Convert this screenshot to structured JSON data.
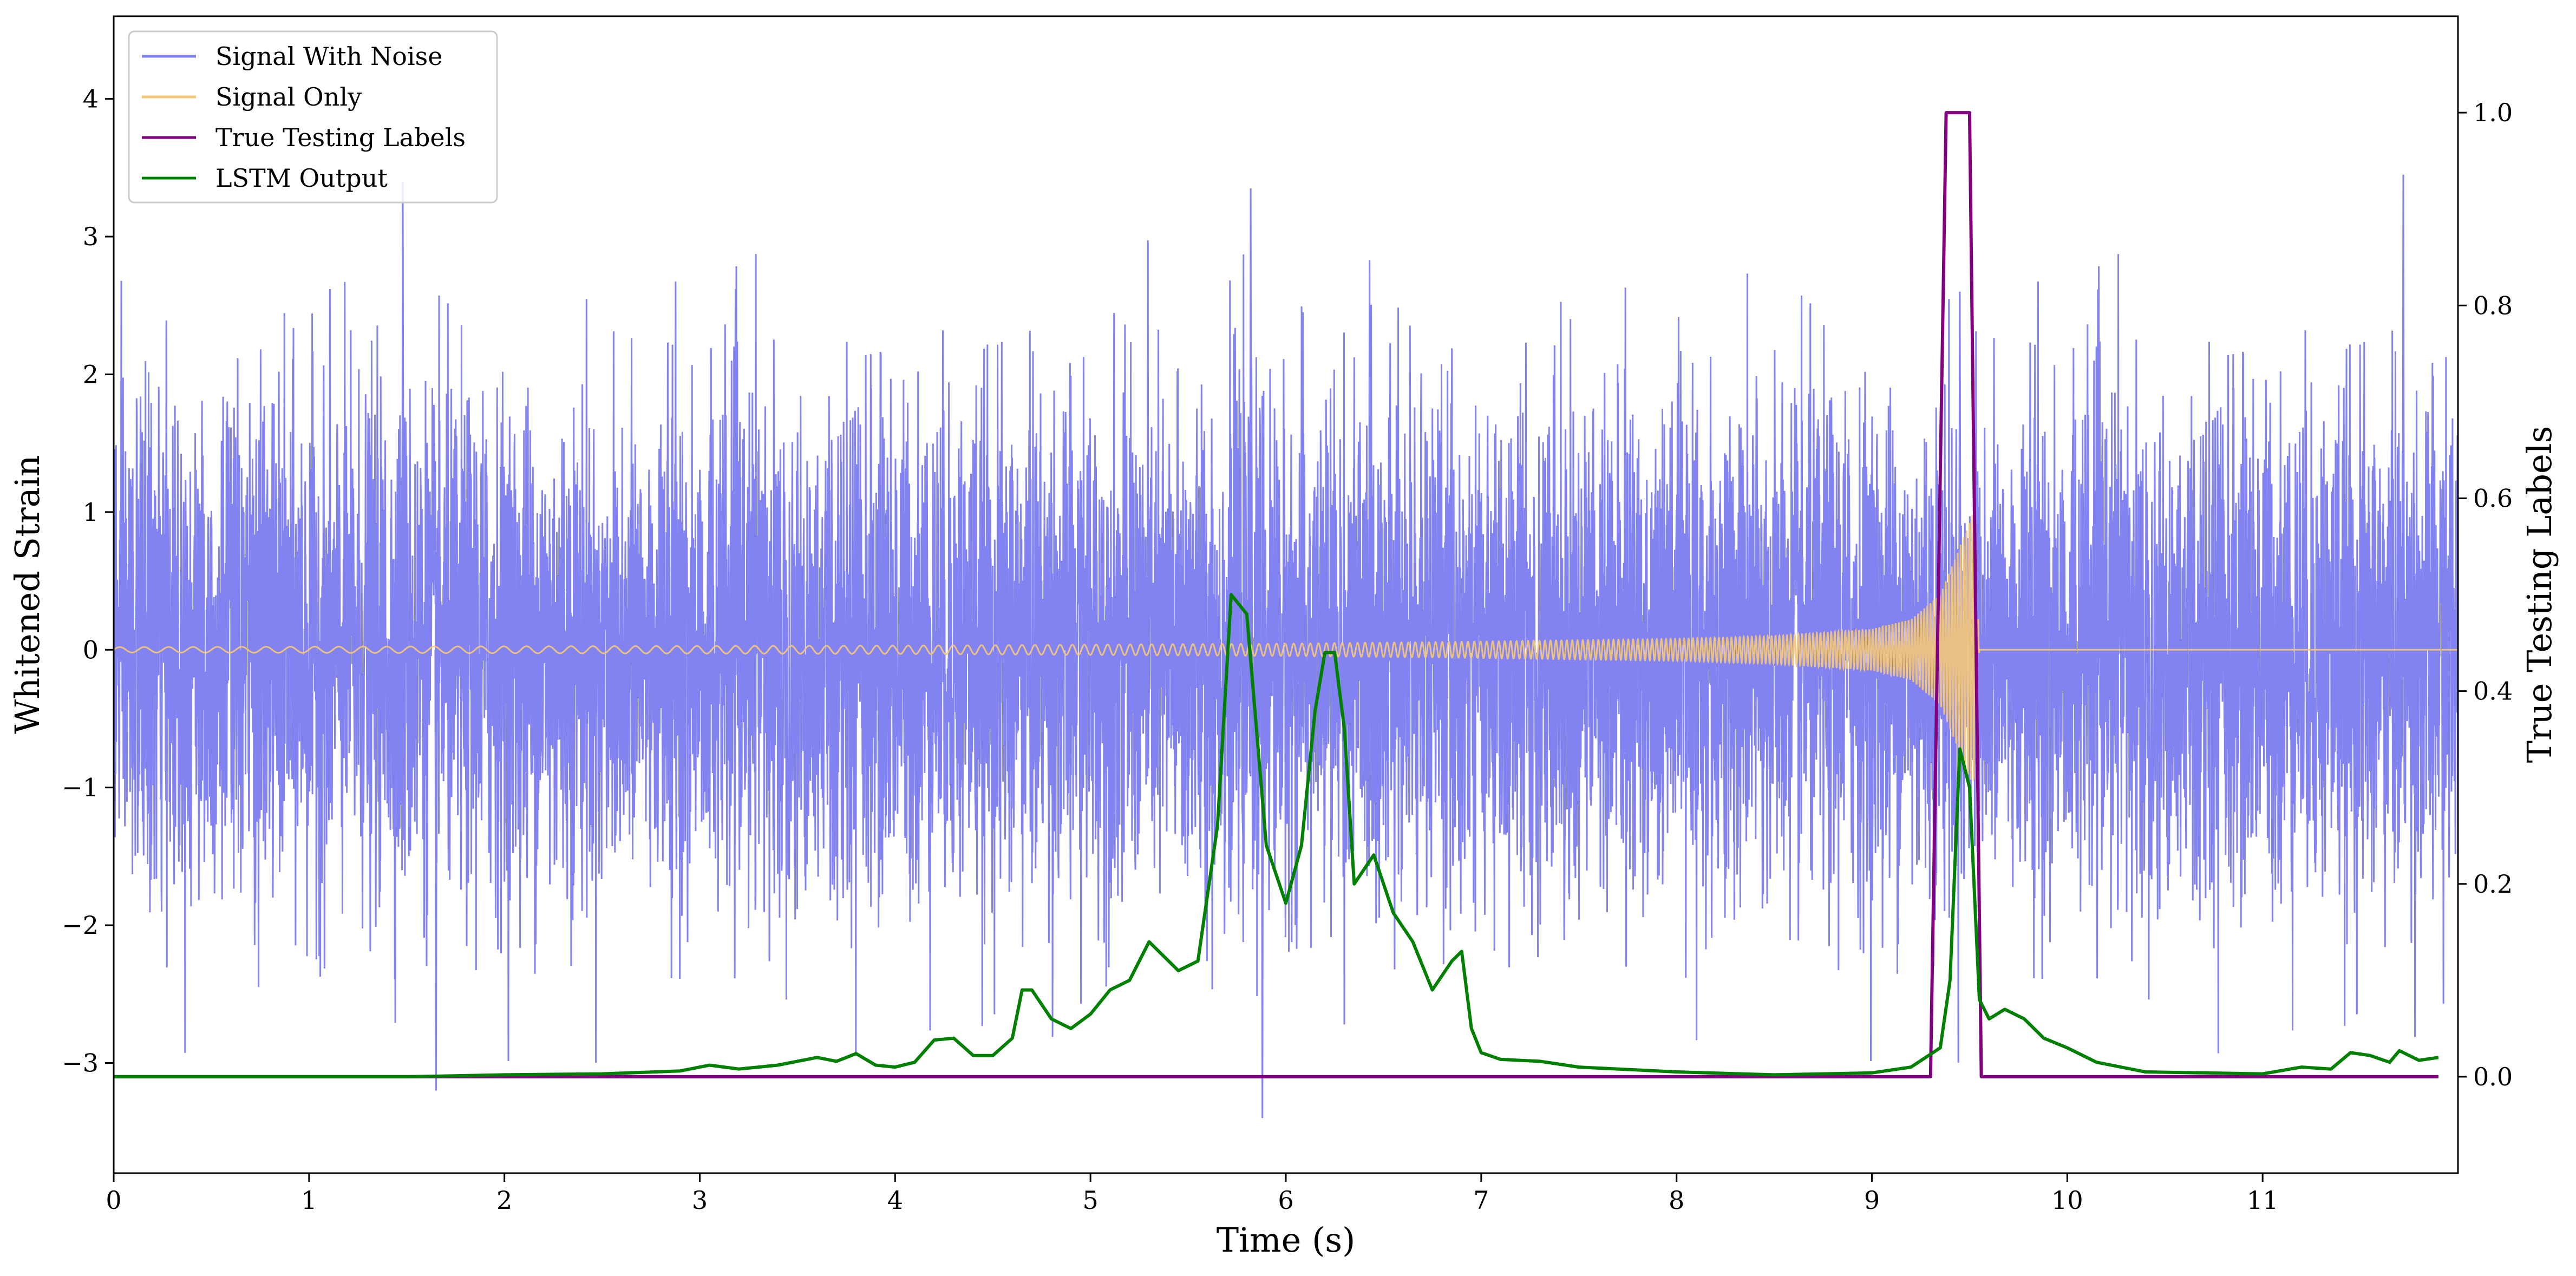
{
  "chart_data": {
    "type": "line",
    "xlabel": "Time (s)",
    "ylabel_left": "Whitened Strain",
    "ylabel_right": "True Testing Labels",
    "xlim": [
      0,
      12
    ],
    "ylim_left": [
      -3.8,
      4.6
    ],
    "ylim_right": [
      -0.1,
      1.1
    ],
    "x_ticks": [
      0,
      1,
      2,
      3,
      4,
      5,
      6,
      7,
      8,
      9,
      10,
      11
    ],
    "x_tick_labels": [
      "0",
      "1",
      "2",
      "3",
      "4",
      "5",
      "6",
      "7",
      "8",
      "9",
      "10",
      "11"
    ],
    "y_left_ticks": [
      -3,
      -2,
      -1,
      0,
      1,
      2,
      3,
      4
    ],
    "y_left_tick_labels": [
      "−3",
      "−2",
      "−1",
      "0",
      "1",
      "2",
      "3",
      "4"
    ],
    "y_right_ticks": [
      0.0,
      0.2,
      0.4,
      0.6,
      0.8,
      1.0
    ],
    "y_right_tick_labels": [
      "0.0",
      "0.2",
      "0.4",
      "0.6",
      "0.8",
      "1.0"
    ],
    "grid": false,
    "legend_position": "top-left",
    "series": [
      {
        "name": "Signal With Noise",
        "axis": "left",
        "color": "#8080f0",
        "description_values": "Gaussian whitened noise, std about 0.9, spikes between about -3.4 and 3.5, spanning 0 to 12 s",
        "amplitude_std": 0.9,
        "peak_points": [
          [
            1.48,
            3.4
          ],
          [
            5.82,
            3.35
          ],
          [
            11.72,
            3.45
          ],
          [
            5.88,
            -3.4
          ],
          [
            1.65,
            -3.2
          ],
          [
            9.45,
            2.6
          ]
        ]
      },
      {
        "name": "Signal Only",
        "axis": "left",
        "color": "#f5c878",
        "description_values": "chirp centred on 0 with amplitude growing from about 0.02 at 0 s to about 1.0 at 9.5 s, then zero",
        "envelope": [
          [
            0,
            0.02
          ],
          [
            2,
            0.025
          ],
          [
            4,
            0.03
          ],
          [
            6,
            0.045
          ],
          [
            7,
            0.06
          ],
          [
            8,
            0.08
          ],
          [
            8.5,
            0.1
          ],
          [
            9,
            0.15
          ],
          [
            9.2,
            0.22
          ],
          [
            9.35,
            0.4
          ],
          [
            9.45,
            0.75
          ],
          [
            9.52,
            1.0
          ],
          [
            9.55,
            0.0
          ],
          [
            12,
            0.0
          ]
        ]
      },
      {
        "name": "True Testing Labels",
        "axis": "right",
        "color": "#800080",
        "points": [
          [
            0,
            0
          ],
          [
            9.3,
            0
          ],
          [
            9.38,
            1.0
          ],
          [
            9.5,
            1.0
          ],
          [
            9.56,
            0
          ],
          [
            11.9,
            0
          ]
        ]
      },
      {
        "name": "LSTM Output",
        "axis": "right",
        "color": "#008000",
        "points": [
          [
            0,
            0.0
          ],
          [
            1.5,
            0.0
          ],
          [
            2.0,
            0.002
          ],
          [
            2.5,
            0.003
          ],
          [
            2.9,
            0.006
          ],
          [
            3.05,
            0.012
          ],
          [
            3.2,
            0.008
          ],
          [
            3.4,
            0.012
          ],
          [
            3.6,
            0.02
          ],
          [
            3.7,
            0.016
          ],
          [
            3.8,
            0.024
          ],
          [
            3.9,
            0.012
          ],
          [
            4.0,
            0.01
          ],
          [
            4.1,
            0.015
          ],
          [
            4.2,
            0.038
          ],
          [
            4.3,
            0.04
          ],
          [
            4.4,
            0.022
          ],
          [
            4.5,
            0.022
          ],
          [
            4.6,
            0.04
          ],
          [
            4.65,
            0.09
          ],
          [
            4.7,
            0.09
          ],
          [
            4.8,
            0.06
          ],
          [
            4.9,
            0.05
          ],
          [
            5.0,
            0.065
          ],
          [
            5.1,
            0.09
          ],
          [
            5.2,
            0.1
          ],
          [
            5.3,
            0.14
          ],
          [
            5.45,
            0.11
          ],
          [
            5.55,
            0.12
          ],
          [
            5.65,
            0.26
          ],
          [
            5.72,
            0.5
          ],
          [
            5.8,
            0.48
          ],
          [
            5.9,
            0.24
          ],
          [
            6.0,
            0.18
          ],
          [
            6.08,
            0.24
          ],
          [
            6.15,
            0.38
          ],
          [
            6.2,
            0.44
          ],
          [
            6.25,
            0.44
          ],
          [
            6.3,
            0.36
          ],
          [
            6.35,
            0.2
          ],
          [
            6.45,
            0.23
          ],
          [
            6.55,
            0.17
          ],
          [
            6.65,
            0.14
          ],
          [
            6.75,
            0.09
          ],
          [
            6.85,
            0.12
          ],
          [
            6.9,
            0.13
          ],
          [
            6.95,
            0.05
          ],
          [
            7.0,
            0.025
          ],
          [
            7.1,
            0.018
          ],
          [
            7.3,
            0.016
          ],
          [
            7.5,
            0.01
          ],
          [
            8.0,
            0.005
          ],
          [
            8.5,
            0.002
          ],
          [
            9.0,
            0.004
          ],
          [
            9.2,
            0.01
          ],
          [
            9.35,
            0.03
          ],
          [
            9.4,
            0.1
          ],
          [
            9.45,
            0.34
          ],
          [
            9.5,
            0.3
          ],
          [
            9.55,
            0.08
          ],
          [
            9.6,
            0.06
          ],
          [
            9.68,
            0.07
          ],
          [
            9.78,
            0.06
          ],
          [
            9.88,
            0.04
          ],
          [
            10.0,
            0.03
          ],
          [
            10.15,
            0.015
          ],
          [
            10.4,
            0.005
          ],
          [
            11.0,
            0.003
          ],
          [
            11.2,
            0.01
          ],
          [
            11.35,
            0.008
          ],
          [
            11.45,
            0.025
          ],
          [
            11.55,
            0.022
          ],
          [
            11.65,
            0.015
          ],
          [
            11.7,
            0.027
          ],
          [
            11.8,
            0.017
          ],
          [
            11.9,
            0.02
          ]
        ]
      }
    ]
  }
}
